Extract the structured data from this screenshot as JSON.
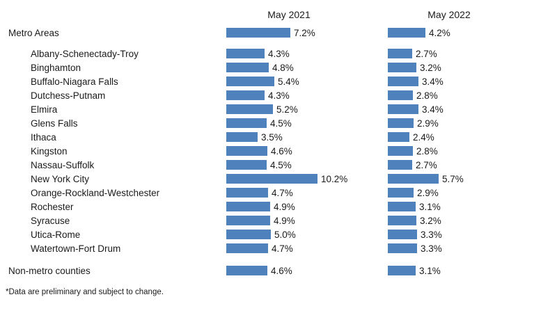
{
  "page": {
    "footnote": "*Data are preliminary and subject to change."
  },
  "chart_data": {
    "type": "bar",
    "orientation": "horizontal",
    "title": "",
    "xlabel": "",
    "ylabel": "",
    "grid": false,
    "legend_position": "column-headers",
    "bar_color": "#4F81BD",
    "categories": [
      "Metro Areas",
      "Albany-Schenectady-Troy",
      "Binghamton",
      "Buffalo-Niagara Falls",
      "Dutchess-Putnam",
      "Elmira",
      "Glens Falls",
      "Ithaca",
      "Kingston",
      "Nassau-Suffolk",
      "New York City",
      "Orange-Rockland-Westchester",
      "Rochester",
      "Syracuse",
      "Utica-Rome",
      "Watertown-Fort Drum",
      "Non-metro counties"
    ],
    "group_indices": [
      0,
      16
    ],
    "series": [
      {
        "name": "May 2021",
        "values": [
          7.2,
          4.3,
          4.8,
          5.4,
          4.3,
          5.2,
          4.5,
          3.5,
          4.6,
          4.5,
          10.2,
          4.7,
          4.9,
          4.9,
          5.0,
          4.7,
          4.6
        ],
        "labels": [
          "7.2%",
          "4.3%",
          "4.8%",
          "5.4%",
          "4.3%",
          "5.2%",
          "4.5%",
          "3.5%",
          "4.6%",
          "4.5%",
          "10.2%",
          "4.7%",
          "4.9%",
          "4.9%",
          "5.0%",
          "4.7%",
          "4.6%"
        ]
      },
      {
        "name": "May 2022",
        "values": [
          4.2,
          2.7,
          3.2,
          3.4,
          2.8,
          3.4,
          2.9,
          2.4,
          2.8,
          2.7,
          5.7,
          2.9,
          3.1,
          3.2,
          3.3,
          3.3,
          3.1
        ],
        "labels": [
          "4.2%",
          "2.7%",
          "3.2%",
          "3.4%",
          "2.8%",
          "3.4%",
          "2.9%",
          "2.4%",
          "2.8%",
          "2.7%",
          "5.7%",
          "2.9%",
          "3.1%",
          "3.2%",
          "3.3%",
          "3.3%",
          "3.1%"
        ]
      }
    ],
    "xlim": [
      0,
      11
    ]
  }
}
